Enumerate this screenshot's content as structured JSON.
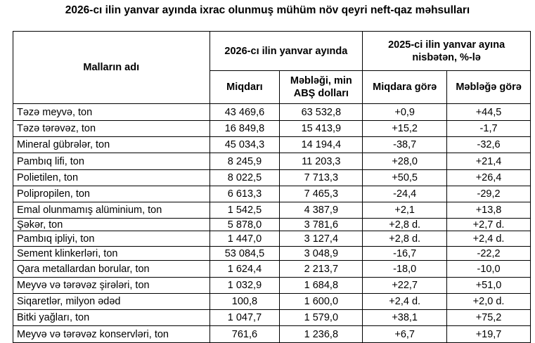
{
  "title": "2026-cı ilin yanvar ayında ixrac olunmuş mühüm növ qeyri neft-qaz məhsulları",
  "headers": {
    "name": "Malların adı",
    "group1": "2026-cı ilin yanvar ayında",
    "group2": "2025-ci ilin yanvar ayına nisbətən, %-lə",
    "qty": "Miqdarı",
    "value": "Məbləği, min ABŞ dolları",
    "qty_rel": "Miqdara görə",
    "value_rel": "Məbləğə görə"
  },
  "rows": [
    {
      "name": "Təzə meyvə, ton",
      "qty": "43 469,6",
      "value": "63 532,8",
      "qty_rel": "+0,9",
      "value_rel": "+44,5"
    },
    {
      "name": "Təzə tərəvəz, ton",
      "qty": "16 849,8",
      "value": "15 413,9",
      "qty_rel": "+15,2",
      "value_rel": "-1,7"
    },
    {
      "name": "Mineral gübrələr, ton",
      "qty": "45 034,3",
      "value": "14 194,4",
      "qty_rel": "-38,7",
      "value_rel": "-32,6"
    },
    {
      "name": "Pambıq lifi, ton",
      "qty": "8 245,9",
      "value": "11 203,3",
      "qty_rel": "+28,0",
      "value_rel": "+21,4"
    },
    {
      "name": "Polietilen, ton",
      "qty": "8 022,5",
      "value": "7 713,3",
      "qty_rel": "+50,5",
      "value_rel": "+26,4"
    },
    {
      "name": "Polipropilen, ton",
      "qty": "6 613,3",
      "value": "7 465,3",
      "qty_rel": "-24,4",
      "value_rel": "-29,2"
    },
    {
      "name": "Emal olunmamış alüminium, ton",
      "qty": "1 542,5",
      "value": "4 387,9",
      "qty_rel": "+2,1",
      "value_rel": "+13,8"
    },
    {
      "name": "Şəkər, ton",
      "qty": "5 878,0",
      "value": "3 781,6",
      "qty_rel": "+2,8 d.",
      "value_rel": "+2,7 d."
    },
    {
      "name": "Pambıq ipliyi, ton",
      "qty": "1 447,0",
      "value": "3 127,4",
      "qty_rel": "+2,8 d.",
      "value_rel": "+2,4 d."
    },
    {
      "name": "Sement klinkerləri, ton",
      "qty": "53 084,5",
      "value": "3 048,9",
      "qty_rel": "-16,7",
      "value_rel": "-22,2"
    },
    {
      "name": "Qara metallardan borular, ton",
      "qty": "1 624,4",
      "value": "2 213,7",
      "qty_rel": "-18,0",
      "value_rel": "-10,0"
    },
    {
      "name": "Meyvə və tərəvəz şirələri, ton",
      "qty": "1 032,9",
      "value": "1 684,8",
      "qty_rel": "+22,7",
      "value_rel": "+51,0"
    },
    {
      "name": "Siqaretlər, milyon ədəd",
      "qty": "100,8",
      "value": "1 600,0",
      "qty_rel": "+2,4 d.",
      "value_rel": "+2,0 d."
    },
    {
      "name": "Bitki yağları, ton",
      "qty": "1 047,7",
      "value": "1 579,0",
      "qty_rel": "+38,1",
      "value_rel": "+75,2"
    },
    {
      "name": "Meyvə və tərəvəz konservləri, ton",
      "qty": "761,6",
      "value": "1 236,8",
      "qty_rel": "+6,7",
      "value_rel": "+19,7"
    }
  ]
}
